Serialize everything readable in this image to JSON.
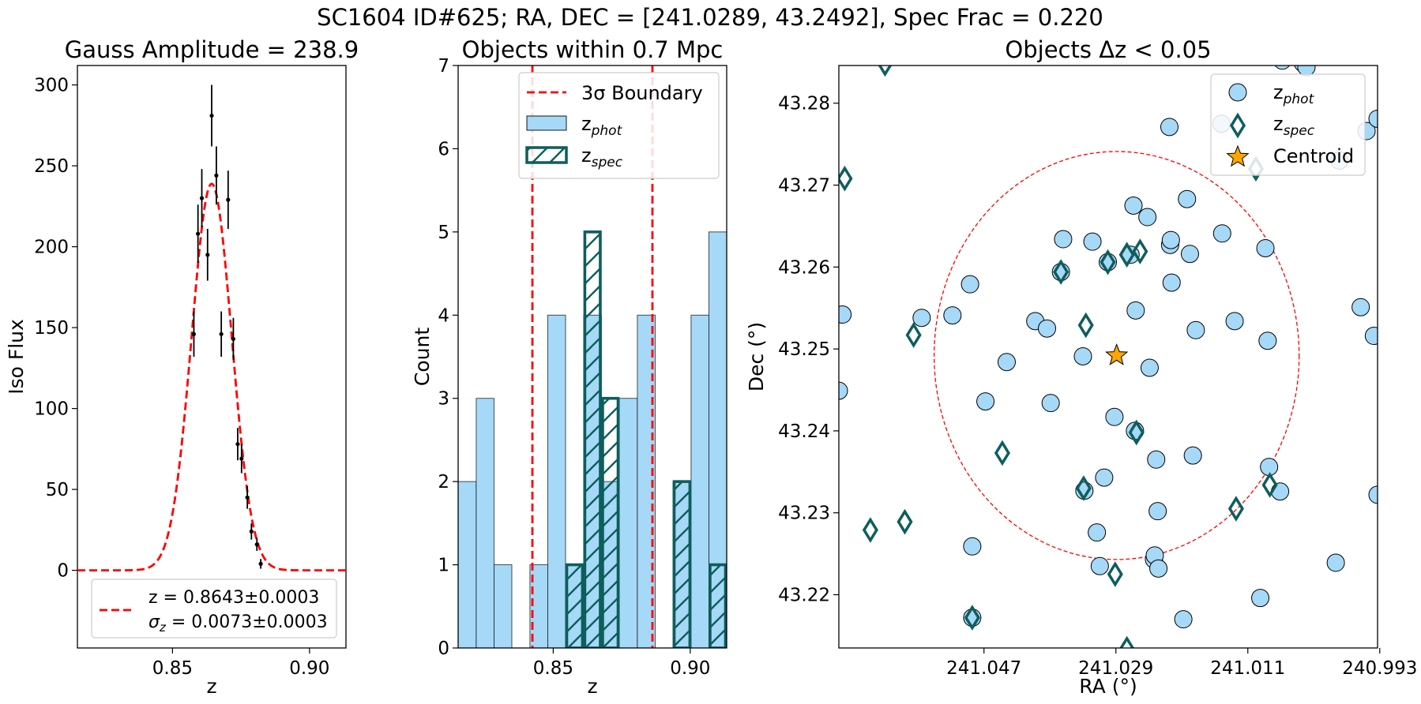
{
  "suptitle": "SC1604 ID#625; RA, DEC = [241.0289, 43.2492], Spec Frac = 0.220",
  "colors": {
    "phot_fill": "#a6d8f7",
    "spec_edge": "#0d5e5c",
    "fit_line": "#ff0000",
    "centroid": "#ffa500"
  },
  "chart_data": [
    {
      "type": "scatter",
      "title": "Gauss Amplitude = 238.9",
      "xlabel": "z",
      "ylabel": "Iso Flux",
      "xlim": [
        0.8153,
        0.9133
      ],
      "ylim": [
        -48,
        312
      ],
      "xticks": [
        0.85,
        0.9
      ],
      "xtick_labels": [
        "0.85",
        "0.90"
      ],
      "yticks": [
        0,
        50,
        100,
        150,
        200,
        250,
        300
      ],
      "ytick_labels": [
        "0",
        "50",
        "100",
        "150",
        "200",
        "250",
        "300"
      ],
      "points": [
        {
          "x": 0.8578,
          "y": 146,
          "err": 14
        },
        {
          "x": 0.8593,
          "y": 208,
          "err": 18
        },
        {
          "x": 0.8607,
          "y": 230,
          "err": 18
        },
        {
          "x": 0.8628,
          "y": 195,
          "err": 16
        },
        {
          "x": 0.8643,
          "y": 281,
          "err": 19
        },
        {
          "x": 0.866,
          "y": 244,
          "err": 18
        },
        {
          "x": 0.8678,
          "y": 146,
          "err": 14
        },
        {
          "x": 0.8703,
          "y": 229,
          "err": 18
        },
        {
          "x": 0.8722,
          "y": 143,
          "err": 13
        },
        {
          "x": 0.8738,
          "y": 78,
          "err": 10
        },
        {
          "x": 0.8752,
          "y": 69,
          "err": 9
        },
        {
          "x": 0.8773,
          "y": 45,
          "err": 7
        },
        {
          "x": 0.8788,
          "y": 24,
          "err": 5
        },
        {
          "x": 0.8808,
          "y": 16,
          "err": 4
        },
        {
          "x": 0.8822,
          "y": 4,
          "err": 3
        }
      ],
      "fit": {
        "amplitude": 238.9,
        "mu": 0.8643,
        "sigma": 0.0073
      },
      "legend": {
        "position": "lower-center",
        "line1": "z = 0.8643±0.0003",
        "line2_prefix": "σ",
        "line2_sub": "z",
        "line2_rest": " = 0.0073±0.0003"
      }
    },
    {
      "type": "bar",
      "title": "Objects within 0.7 Mpc",
      "xlabel": "z",
      "ylabel": "Count",
      "xlim": [
        0.8153,
        0.9133
      ],
      "ylim": [
        0,
        7
      ],
      "xticks": [
        0.85,
        0.9
      ],
      "xtick_labels": [
        "0.85",
        "0.90"
      ],
      "yticks": [
        0,
        1,
        2,
        3,
        4,
        5,
        6,
        7
      ],
      "ytick_labels": [
        "0",
        "1",
        "2",
        "3",
        "4",
        "5",
        "6",
        "7"
      ],
      "bin_edges": [
        0.8153,
        0.8219,
        0.8284,
        0.8349,
        0.8415,
        0.848,
        0.8545,
        0.8611,
        0.8676,
        0.8741,
        0.8807,
        0.8872,
        0.8937,
        0.9003,
        0.9068,
        0.9133
      ],
      "series": [
        {
          "name": "z_phot",
          "values": [
            2,
            3,
            1,
            0,
            1,
            4,
            1,
            4,
            2,
            3,
            4,
            0,
            2,
            4,
            5
          ]
        },
        {
          "name": "z_spec",
          "values": [
            0,
            0,
            0,
            0,
            0,
            0,
            1,
            5,
            3,
            0,
            0,
            0,
            2,
            0,
            1
          ]
        }
      ],
      "boundary_lines": [
        0.8424,
        0.8862
      ],
      "legend": {
        "position": "top-right",
        "boundary_label": "3σ Boundary",
        "phot_label": "z",
        "phot_sub": "phot",
        "spec_label": "z",
        "spec_sub": "spec"
      }
    },
    {
      "type": "scatter",
      "title": "Objects Δz < 0.05",
      "xlabel": "RA (°)",
      "ylabel": "Dec (°)",
      "xlim": [
        241.0668,
        240.9933
      ],
      "ylim": [
        43.2135,
        43.2846
      ],
      "xticks": [
        241.047,
        241.029,
        241.011,
        240.993
      ],
      "xtick_labels": [
        "241.047",
        "241.029",
        "241.011",
        "240.993"
      ],
      "yticks": [
        43.22,
        43.23,
        43.24,
        43.25,
        43.26,
        43.27,
        43.28
      ],
      "ytick_labels": [
        "43.22",
        "43.23",
        "43.24",
        "43.25",
        "43.26",
        "43.27",
        "43.28"
      ],
      "centroid": [
        241.0289,
        43.2492
      ],
      "circle_radius_deg": 0.0249,
      "phot": [
        [
          241.0663,
          43.2542
        ],
        [
          241.0668,
          43.2449
        ],
        [
          241.0555,
          43.2538
        ],
        [
          241.0513,
          43.2541
        ],
        [
          241.0489,
          43.2579
        ],
        [
          241.0486,
          43.2259
        ],
        [
          241.0486,
          43.2172
        ],
        [
          241.0468,
          43.2436
        ],
        [
          241.0439,
          43.2484
        ],
        [
          241.04,
          43.2534
        ],
        [
          241.0384,
          43.2525
        ],
        [
          241.0379,
          43.2434
        ],
        [
          241.0365,
          43.2594
        ],
        [
          241.0362,
          43.2634
        ],
        [
          241.0335,
          43.2491
        ],
        [
          241.0333,
          43.2327
        ],
        [
          241.0322,
          43.2631
        ],
        [
          241.0316,
          43.2276
        ],
        [
          241.0312,
          43.2235
        ],
        [
          241.0306,
          43.2343
        ],
        [
          241.0301,
          43.2606
        ],
        [
          241.0292,
          43.2417
        ],
        [
          241.027,
          43.2615
        ],
        [
          241.0266,
          43.2675
        ],
        [
          241.0264,
          43.24
        ],
        [
          241.0263,
          43.2547
        ],
        [
          241.0247,
          43.2661
        ],
        [
          241.0244,
          43.2477
        ],
        [
          241.0238,
          43.2243
        ],
        [
          241.0237,
          43.2248
        ],
        [
          241.0235,
          43.2365
        ],
        [
          241.0233,
          43.2302
        ],
        [
          241.0232,
          43.2232
        ],
        [
          241.0217,
          43.2771
        ],
        [
          241.0216,
          43.2627
        ],
        [
          241.0215,
          43.2633
        ],
        [
          241.0214,
          43.2581
        ],
        [
          241.0198,
          43.217
        ],
        [
          241.0193,
          43.2683
        ],
        [
          241.0189,
          43.2616
        ],
        [
          241.0185,
          43.237
        ],
        [
          241.0181,
          43.2523
        ],
        [
          241.0146,
          43.2775
        ],
        [
          241.0145,
          43.2641
        ],
        [
          241.0128,
          43.2534
        ],
        [
          241.0093,
          43.2196
        ],
        [
          241.0086,
          43.2623
        ],
        [
          241.0083,
          43.251
        ],
        [
          241.0081,
          43.2356
        ],
        [
          241.0066,
          43.2326
        ],
        [
          241.0063,
          43.2852
        ],
        [
          241.0035,
          43.2849
        ],
        [
          241.003,
          43.2844
        ],
        [
          240.999,
          43.2239
        ],
        [
          240.9985,
          43.273
        ],
        [
          240.9956,
          43.2551
        ],
        [
          240.9948,
          43.2766
        ],
        [
          240.9938,
          43.2516
        ],
        [
          240.9933,
          43.2322
        ],
        [
          240.9933,
          43.2781
        ]
      ],
      "spec": [
        [
          241.066,
          43.2708
        ],
        [
          241.0605,
          43.2848
        ],
        [
          241.0625,
          43.2279
        ],
        [
          241.0578,
          43.2289
        ],
        [
          241.0566,
          43.2517
        ],
        [
          241.0486,
          43.2172
        ],
        [
          241.0445,
          43.2373
        ],
        [
          241.0365,
          43.2594
        ],
        [
          241.0334,
          43.233
        ],
        [
          241.0331,
          43.2529
        ],
        [
          241.0301,
          43.2606
        ],
        [
          241.0291,
          43.2225
        ],
        [
          241.0275,
          43.2134
        ],
        [
          241.0275,
          43.2615
        ],
        [
          241.0262,
          43.2398
        ],
        [
          241.0257,
          43.2619
        ],
        [
          241.0126,
          43.2305
        ],
        [
          241.0099,
          43.272
        ],
        [
          241.008,
          43.2334
        ]
      ],
      "legend": {
        "position": "top-right",
        "phot_label": "z",
        "phot_sub": "phot",
        "spec_label": "z",
        "spec_sub": "spec",
        "centroid_label": "Centroid"
      }
    }
  ]
}
